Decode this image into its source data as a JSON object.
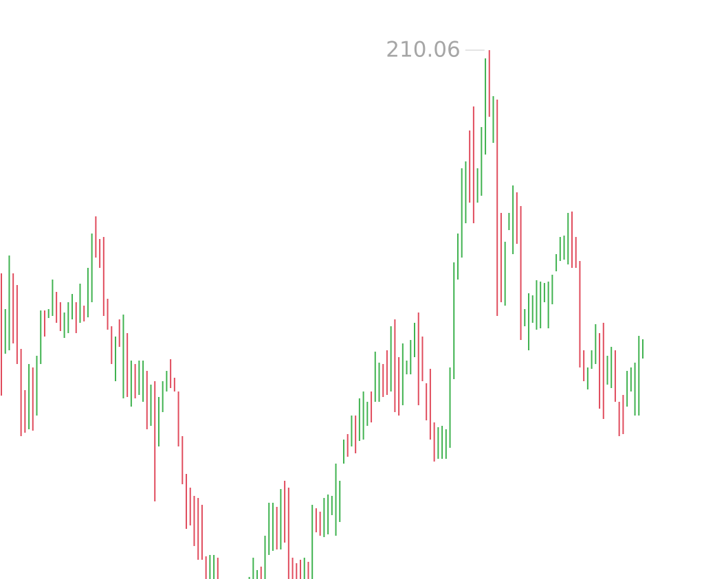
{
  "chart_data": {
    "type": "ohlc",
    "ylim": [
      133.06,
      217.36
    ],
    "up_color": "#3fb24f",
    "down_color": "#e04b5c",
    "high": [
      177.56,
      172.36,
      180.16,
      177.56,
      175.86,
      166.56,
      160.56,
      164.36,
      163.86,
      165.56,
      172.16,
      172.16,
      172.36,
      176.66,
      174.86,
      173.36,
      171.86,
      173.36,
      174.56,
      173.36,
      176.06,
      172.86,
      178.36,
      183.36,
      185.86,
      182.56,
      182.86,
      173.86,
      169.86,
      168.36,
      170.86,
      171.56,
      168.86,
      164.86,
      164.36,
      164.86,
      164.86,
      163.36,
      161.36,
      161.86,
      159.56,
      161.86,
      163.36,
      165.06,
      162.36,
      160.36,
      153.86,
      148.36,
      146.36,
      145.16,
      144.86,
      143.86,
      136.36,
      136.56,
      136.56,
      136.16,
      null,
      null,
      null,
      null,
      null,
      null,
      null,
      133.36,
      136.16,
      134.36,
      134.86,
      139.36,
      144.16,
      144.16,
      143.56,
      146.16,
      147.36,
      146.36,
      136.16,
      135.36,
      135.86,
      136.16,
      135.56,
      143.86,
      143.36,
      142.86,
      144.86,
      145.36,
      145.16,
      149.86,
      147.36,
      153.36,
      154.16,
      156.86,
      156.86,
      159.36,
      160.36,
      158.86,
      160.36,
      166.16,
      164.56,
      164.36,
      166.36,
      169.86,
      170.86,
      165.36,
      167.36,
      164.86,
      167.86,
      170.36,
      171.86,
      168.36,
      161.56,
      163.66,
      155.86,
      155.16,
      155.36,
      154.86,
      163.86,
      179.16,
      183.36,
      192.86,
      193.86,
      198.36,
      201.86,
      192.86,
      198.86,
      208.86,
      210.06,
      203.36,
      202.86,
      186.36,
      182.16,
      186.36,
      190.36,
      189.36,
      187.36,
      172.36,
      174.66,
      174.36,
      176.56,
      176.36,
      176.16,
      176.36,
      177.36,
      180.36,
      182.86,
      183.06,
      186.36,
      186.56,
      182.86,
      179.36,
      166.36,
      163.86,
      166.36,
      170.16,
      168.86,
      170.36,
      165.56,
      166.86,
      166.36,
      158.86,
      159.86,
      163.36,
      163.86,
      164.56,
      168.46,
      167.96
    ],
    "low": [
      159.76,
      165.86,
      166.36,
      167.36,
      164.36,
      153.86,
      154.36,
      154.86,
      154.66,
      156.86,
      164.36,
      168.36,
      171.06,
      171.36,
      170.36,
      169.16,
      168.16,
      168.86,
      170.86,
      168.86,
      170.36,
      170.56,
      171.16,
      173.36,
      179.86,
      178.36,
      171.36,
      169.36,
      164.36,
      161.86,
      166.86,
      159.36,
      159.56,
      158.16,
      159.36,
      159.86,
      158.86,
      154.86,
      155.36,
      144.36,
      152.36,
      157.36,
      160.36,
      160.86,
      160.36,
      152.36,
      146.86,
      140.36,
      140.86,
      137.86,
      135.86,
      135.86,
      132.5,
      132.5,
      132.5,
      132.5,
      null,
      null,
      null,
      null,
      null,
      null,
      null,
      132.5,
      132.5,
      132.5,
      132.5,
      132.5,
      136.56,
      137.16,
      137.36,
      137.36,
      138.36,
      132.5,
      132.5,
      132.5,
      132.5,
      132.5,
      132.5,
      132.5,
      139.86,
      139.36,
      139.16,
      139.56,
      142.36,
      139.36,
      141.36,
      149.86,
      150.86,
      152.36,
      151.36,
      153.16,
      153.36,
      155.36,
      155.86,
      158.86,
      158.86,
      159.56,
      159.86,
      160.36,
      157.36,
      156.86,
      158.36,
      162.86,
      162.86,
      165.36,
      158.36,
      161.86,
      156.16,
      153.36,
      150.16,
      150.56,
      150.56,
      150.56,
      152.16,
      162.16,
      176.66,
      179.86,
      184.86,
      187.86,
      184.86,
      187.86,
      188.86,
      194.86,
      200.36,
      196.56,
      171.36,
      173.36,
      172.86,
      183.86,
      180.36,
      181.86,
      167.86,
      169.86,
      166.36,
      170.36,
      169.36,
      169.56,
      173.36,
      169.56,
      173.06,
      177.86,
      179.36,
      179.56,
      178.86,
      178.36,
      178.36,
      163.86,
      161.86,
      160.66,
      163.66,
      164.36,
      157.86,
      156.36,
      161.36,
      160.86,
      158.86,
      153.86,
      154.16,
      158.16,
      160.36,
      156.86,
      156.86,
      165.16
    ],
    "rising": [
      false,
      true,
      true,
      false,
      false,
      false,
      false,
      true,
      false,
      true,
      true,
      false,
      true,
      true,
      false,
      false,
      true,
      true,
      true,
      false,
      true,
      false,
      true,
      true,
      false,
      false,
      false,
      false,
      false,
      true,
      false,
      true,
      false,
      true,
      false,
      true,
      true,
      false,
      true,
      false,
      true,
      true,
      true,
      false,
      false,
      false,
      false,
      false,
      false,
      false,
      false,
      false,
      false,
      true,
      true,
      false,
      null,
      null,
      null,
      null,
      null,
      null,
      null,
      true,
      true,
      true,
      false,
      true,
      true,
      true,
      false,
      true,
      false,
      false,
      false,
      false,
      false,
      true,
      false,
      true,
      false,
      false,
      true,
      true,
      true,
      true,
      true,
      true,
      false,
      true,
      false,
      true,
      true,
      true,
      false,
      true,
      true,
      false,
      false,
      true,
      false,
      false,
      true,
      true,
      true,
      true,
      false,
      false,
      false,
      false,
      false,
      true,
      true,
      true,
      true,
      true,
      true,
      true,
      true,
      false,
      false,
      true,
      true,
      true,
      false,
      true,
      false,
      false,
      true,
      true,
      true,
      false,
      false,
      true,
      true,
      true,
      true,
      true,
      true,
      true,
      true,
      true,
      true,
      true,
      true,
      false,
      false,
      false,
      false,
      true,
      true,
      true,
      false,
      false,
      true,
      true,
      false,
      false,
      false,
      true,
      true,
      true,
      true,
      true
    ]
  }
}
